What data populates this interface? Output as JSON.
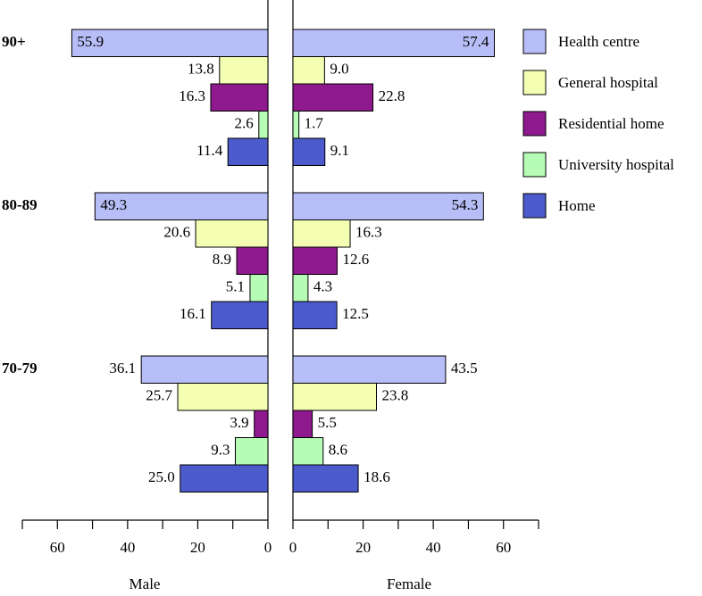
{
  "chart_data": {
    "type": "butterfly",
    "categories": [
      "90+",
      "80-89",
      "70-79"
    ],
    "panel_labels": [
      "Male",
      "Female"
    ],
    "xlim": [
      0,
      70
    ],
    "xticks": [
      0,
      20,
      40,
      60
    ],
    "xminor_ticks": [
      10,
      30,
      50,
      70
    ],
    "series": [
      {
        "name": "Health centre",
        "color": "#b7bef7",
        "male": [
          55.9,
          49.3,
          36.1
        ],
        "male_labels": [
          "55.9",
          "49.3",
          "36.1"
        ],
        "female": [
          57.4,
          54.3,
          43.5
        ],
        "female_labels": [
          "57.4",
          "54.3",
          "43.5"
        ]
      },
      {
        "name": "General hospital",
        "color": "#f5ffb3",
        "male": [
          13.8,
          20.6,
          25.7
        ],
        "male_labels": [
          "13.8",
          "20.6",
          "25.7"
        ],
        "female": [
          9.0,
          16.3,
          23.8
        ],
        "female_labels": [
          "9.0",
          "16.3",
          "23.8"
        ]
      },
      {
        "name": "Residential home",
        "color": "#8e1a8e",
        "male": [
          16.3,
          8.9,
          3.9
        ],
        "male_labels": [
          "16.3",
          "8.9",
          "3.9"
        ],
        "female": [
          22.8,
          12.6,
          5.5
        ],
        "female_labels": [
          "22.8",
          "12.6",
          "5.5"
        ]
      },
      {
        "name": "University hospital",
        "color": "#b6fbb6",
        "male": [
          2.6,
          5.1,
          9.3
        ],
        "male_labels": [
          "2.6",
          "5.1",
          "9.3"
        ],
        "female": [
          1.7,
          4.3,
          8.6
        ],
        "female_labels": [
          "1.7",
          "4.3",
          "8.6"
        ]
      },
      {
        "name": "Home",
        "color": "#4b5bcc",
        "male": [
          11.4,
          16.1,
          25.0
        ],
        "male_labels": [
          "11.4",
          "16.1",
          "25.0"
        ],
        "female": [
          9.1,
          12.5,
          18.6
        ],
        "female_labels": [
          "9.1",
          "12.5",
          "18.6"
        ]
      }
    ]
  }
}
